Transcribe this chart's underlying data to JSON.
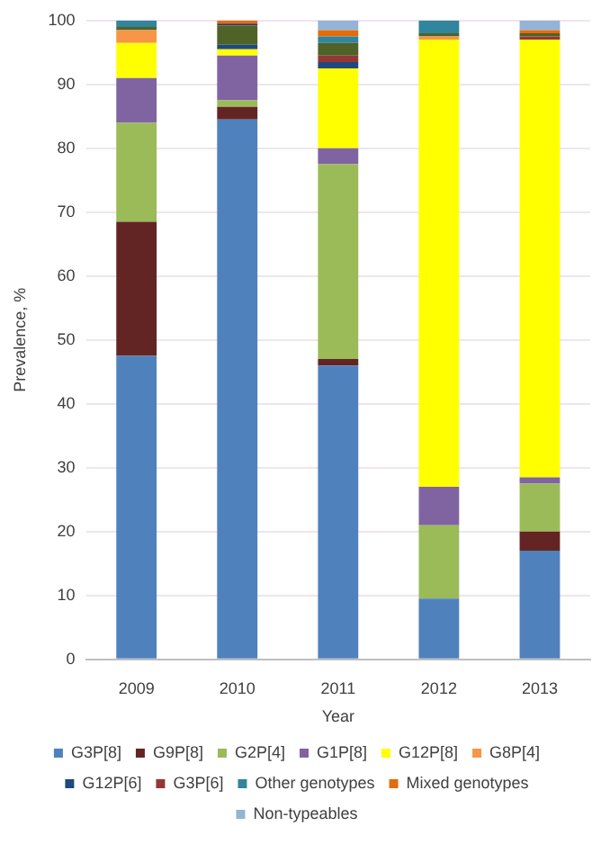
{
  "chart_data": {
    "type": "bar",
    "stacked": true,
    "xlabel": "Year",
    "ylabel": "Prevalence, %",
    "categories": [
      "2009",
      "2010",
      "2011",
      "2012",
      "2013"
    ],
    "ylim": [
      0,
      100
    ],
    "yticks": [
      0,
      10,
      20,
      30,
      40,
      50,
      60,
      70,
      80,
      90,
      100
    ],
    "grid": "y",
    "legend": "bottom",
    "series": [
      {
        "name": "G3P[8]",
        "color": "#4f81bd",
        "values": [
          47.5,
          84.5,
          46,
          9.5,
          17
        ]
      },
      {
        "name": "G9P[8]",
        "color": "#632523",
        "values": [
          21,
          2,
          1,
          0,
          3
        ]
      },
      {
        "name": "G2P[4]",
        "color": "#9bbb59",
        "values": [
          15.5,
          1,
          30.5,
          11.5,
          7.5
        ]
      },
      {
        "name": "G1P[8]",
        "color": "#8064a2",
        "values": [
          7,
          7,
          2.5,
          6,
          1
        ]
      },
      {
        "name": "G12P[8]",
        "color": "#ffff00",
        "values": [
          5.5,
          1,
          12.5,
          70,
          68.5
        ]
      },
      {
        "name": "G8P[4]",
        "color": "#f79646",
        "values": [
          2,
          0,
          0,
          0.5,
          0
        ]
      },
      {
        "name": "G12P[6]",
        "color": "#1f497d",
        "values": [
          0,
          0.7,
          1,
          0,
          0
        ]
      },
      {
        "name": "G3P[6]",
        "color": "#953735",
        "values": [
          0,
          0,
          1,
          0,
          0.5
        ]
      },
      {
        "color": "#4f6228",
        "values": [
          0.5,
          3,
          2,
          0.5,
          0.5
        ]
      },
      {
        "color": "#403151",
        "values": [
          0,
          0.3,
          0,
          0,
          0
        ]
      },
      {
        "name": "Other genotypes",
        "color": "#31859c",
        "values": [
          1,
          0,
          1,
          2,
          0
        ]
      },
      {
        "name": "Mixed genotypes",
        "color": "#e46c0a",
        "values": [
          0,
          0.5,
          1,
          0,
          0.5
        ]
      },
      {
        "name": "Non-typeables",
        "color": "#95b3d7",
        "values": [
          0,
          0,
          1.5,
          0,
          1.5
        ]
      }
    ]
  }
}
